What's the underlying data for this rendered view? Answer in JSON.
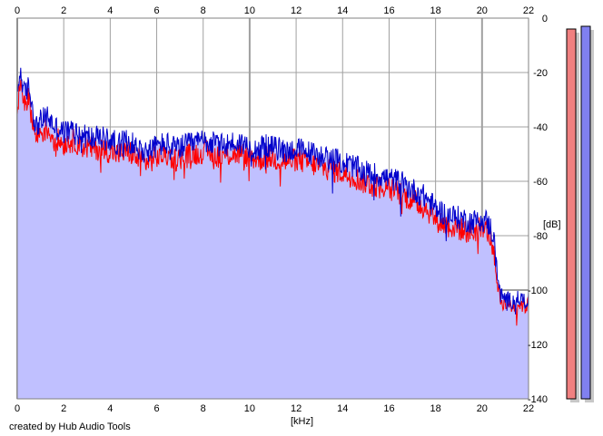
{
  "chart_data": {
    "type": "area",
    "xlabel": "[kHz]",
    "ylabel": "[dB]",
    "xlim": [
      0,
      22
    ],
    "ylim": [
      -140,
      0
    ],
    "x_ticks": [
      0,
      2,
      4,
      6,
      8,
      10,
      12,
      14,
      16,
      18,
      20,
      22
    ],
    "y_ticks": [
      0,
      -20,
      -40,
      -60,
      -80,
      -100,
      -120,
      -140
    ],
    "grid": true,
    "series": [
      {
        "color": "#0000cc",
        "x": [
          0,
          0.1,
          0.2,
          0.3,
          0.5,
          0.8,
          1.0,
          1.3,
          1.6,
          2.0,
          2.4,
          2.8,
          3.2,
          3.6,
          4.0,
          4.4,
          4.8,
          5.2,
          5.6,
          6.0,
          6.4,
          6.8,
          7.2,
          7.6,
          8.0,
          8.4,
          8.8,
          9.2,
          9.6,
          10.0,
          10.4,
          10.8,
          11.2,
          11.6,
          12.0,
          12.4,
          12.8,
          13.2,
          13.6,
          14.0,
          14.4,
          14.8,
          15.2,
          15.6,
          16.0,
          16.4,
          16.8,
          17.2,
          17.6,
          18.0,
          18.4,
          18.8,
          19.2,
          19.6,
          20.0,
          20.3,
          20.5,
          20.6,
          20.8,
          21.0,
          21.3,
          21.6,
          21.9,
          22.0
        ],
        "values": [
          -30,
          -20,
          -22,
          -28,
          -25,
          -40,
          -38,
          -36,
          -40,
          -42,
          -41,
          -43,
          -44,
          -44,
          -45,
          -46,
          -45,
          -48,
          -49,
          -47,
          -46,
          -48,
          -47,
          -46,
          -45,
          -46,
          -47,
          -46,
          -46,
          -47,
          -48,
          -47,
          -48,
          -49,
          -48,
          -49,
          -50,
          -51,
          -52,
          -53,
          -54,
          -56,
          -57,
          -58,
          -59,
          -60,
          -62,
          -64,
          -66,
          -70,
          -72,
          -73,
          -74,
          -75,
          -73,
          -76,
          -80,
          -90,
          -102,
          -103,
          -104,
          -103,
          -104,
          -103
        ]
      },
      {
        "color": "#ff0000",
        "x": [
          0,
          0.1,
          0.2,
          0.3,
          0.5,
          0.8,
          1.0,
          1.3,
          1.6,
          2.0,
          2.4,
          2.8,
          3.2,
          3.6,
          4.0,
          4.4,
          4.8,
          5.2,
          5.6,
          6.0,
          6.4,
          6.8,
          7.2,
          7.6,
          8.0,
          8.4,
          8.8,
          9.2,
          9.6,
          10.0,
          10.4,
          10.8,
          11.2,
          11.6,
          12.0,
          12.4,
          12.8,
          13.2,
          13.6,
          14.0,
          14.4,
          14.8,
          15.2,
          15.6,
          16.0,
          16.4,
          16.8,
          17.2,
          17.6,
          18.0,
          18.4,
          18.8,
          19.2,
          19.6,
          20.0,
          20.3,
          20.5,
          20.6,
          20.8,
          21.0,
          21.3,
          21.6,
          21.9,
          22.0
        ],
        "values": [
          -40,
          -23,
          -26,
          -30,
          -30,
          -44,
          -42,
          -41,
          -44,
          -46,
          -45,
          -47,
          -48,
          -48,
          -49,
          -50,
          -49,
          -52,
          -53,
          -51,
          -50,
          -52,
          -51,
          -50,
          -49,
          -50,
          -51,
          -50,
          -50,
          -51,
          -52,
          -51,
          -52,
          -53,
          -52,
          -53,
          -54,
          -55,
          -56,
          -57,
          -58,
          -60,
          -61,
          -62,
          -63,
          -64,
          -66,
          -68,
          -70,
          -74,
          -76,
          -77,
          -78,
          -79,
          -76,
          -79,
          -84,
          -94,
          -104,
          -105,
          -106,
          -105,
          -106,
          -105
        ]
      }
    ],
    "meters": [
      {
        "color": "#f08080",
        "value": -2
      },
      {
        "color": "#8080f0",
        "value": -1
      }
    ]
  },
  "footer": {
    "credit": "created by Hub Audio Tools"
  }
}
